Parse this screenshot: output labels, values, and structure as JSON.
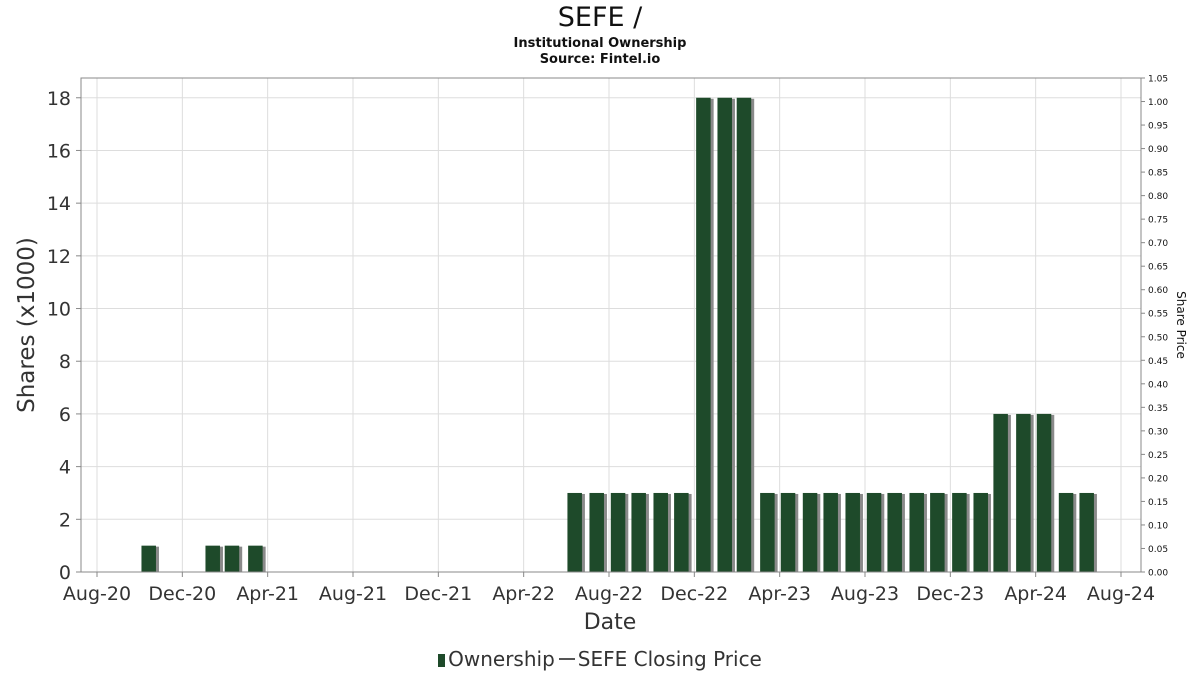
{
  "chart_data": {
    "type": "bar",
    "title": "SEFE /",
    "subtitle": "Institutional Ownership",
    "source": "Source: Fintel.io",
    "xlabel": "Date",
    "ylabel": "Shares (x1000)",
    "y2label": "Share Price",
    "x_ticks": [
      "Aug-20",
      "Dec-20",
      "Apr-21",
      "Aug-21",
      "Dec-21",
      "Apr-22",
      "Aug-22",
      "Dec-22",
      "Apr-23",
      "Aug-23",
      "Dec-23",
      "Apr-24",
      "Aug-24"
    ],
    "x_start": "2020-08",
    "x_end": "2024-08",
    "ylim": [
      0,
      18.75
    ],
    "y_ticks": [
      "0",
      "2",
      "4",
      "6",
      "8",
      "10",
      "12",
      "14",
      "16",
      "18"
    ],
    "y2lim": [
      0,
      1.05
    ],
    "y2_ticks": [
      "0.00",
      "0.05",
      "0.10",
      "0.15",
      "0.20",
      "0.25",
      "0.30",
      "0.35",
      "0.40",
      "0.45",
      "0.50",
      "0.55",
      "0.60",
      "0.65",
      "0.70",
      "0.75",
      "0.80",
      "0.85",
      "0.90",
      "0.95",
      "1.00",
      "1.05"
    ],
    "grid": true,
    "legend_position": "bottom",
    "colors": {
      "bar": "#1e4a2a",
      "bar_shadow": "#8a8a8a",
      "grid": "#dddddd"
    },
    "series": [
      {
        "name": "Ownership",
        "points": [
          {
            "x": "2020-10-31",
            "y": 1
          },
          {
            "x": "2021-01-31",
            "y": 1
          },
          {
            "x": "2021-02-28",
            "y": 1
          },
          {
            "x": "2021-03-31",
            "y": 1
          },
          {
            "x": "2022-06-30",
            "y": 3
          },
          {
            "x": "2022-07-31",
            "y": 3
          },
          {
            "x": "2022-08-31",
            "y": 3
          },
          {
            "x": "2022-09-30",
            "y": 3
          },
          {
            "x": "2022-10-31",
            "y": 3
          },
          {
            "x": "2022-11-30",
            "y": 3
          },
          {
            "x": "2022-12-31",
            "y": 18
          },
          {
            "x": "2023-01-31",
            "y": 18
          },
          {
            "x": "2023-02-28",
            "y": 18
          },
          {
            "x": "2023-03-31",
            "y": 3
          },
          {
            "x": "2023-04-30",
            "y": 3
          },
          {
            "x": "2023-05-31",
            "y": 3
          },
          {
            "x": "2023-06-30",
            "y": 3
          },
          {
            "x": "2023-07-31",
            "y": 3
          },
          {
            "x": "2023-08-31",
            "y": 3
          },
          {
            "x": "2023-09-30",
            "y": 3
          },
          {
            "x": "2023-10-31",
            "y": 3
          },
          {
            "x": "2023-11-30",
            "y": 3
          },
          {
            "x": "2023-12-31",
            "y": 3
          },
          {
            "x": "2024-01-31",
            "y": 3
          },
          {
            "x": "2024-02-29",
            "y": 6
          },
          {
            "x": "2024-03-31",
            "y": 6
          },
          {
            "x": "2024-04-30",
            "y": 6
          },
          {
            "x": "2024-05-31",
            "y": 3
          },
          {
            "x": "2024-06-30",
            "y": 3
          }
        ]
      },
      {
        "name": "SEFE Closing Price",
        "points": []
      }
    ]
  }
}
